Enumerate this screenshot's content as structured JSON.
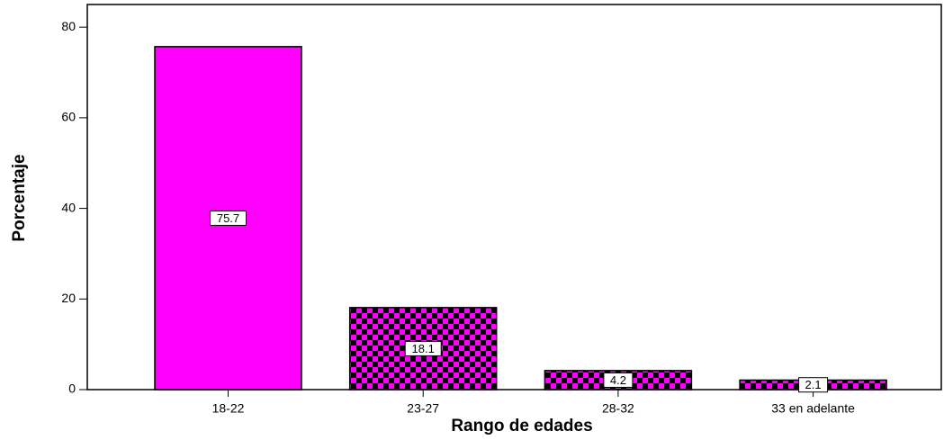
{
  "chart_data": {
    "type": "bar",
    "x_label": "Rango de edades",
    "y_label": "Porcentaje",
    "categories": [
      "18-22",
      "23-27",
      "28-32",
      "33 en adelante"
    ],
    "values": [
      75.7,
      18.1,
      4.2,
      2.1
    ],
    "colors": [
      "#ff00ff",
      "#ff00ff",
      "#ff00ff",
      "#ff00ff"
    ],
    "patterns": [
      "solid",
      "checker",
      "checker",
      "checker"
    ],
    "ylim": [
      0,
      85
    ],
    "yticks": [
      0,
      20,
      40,
      60,
      80
    ]
  }
}
